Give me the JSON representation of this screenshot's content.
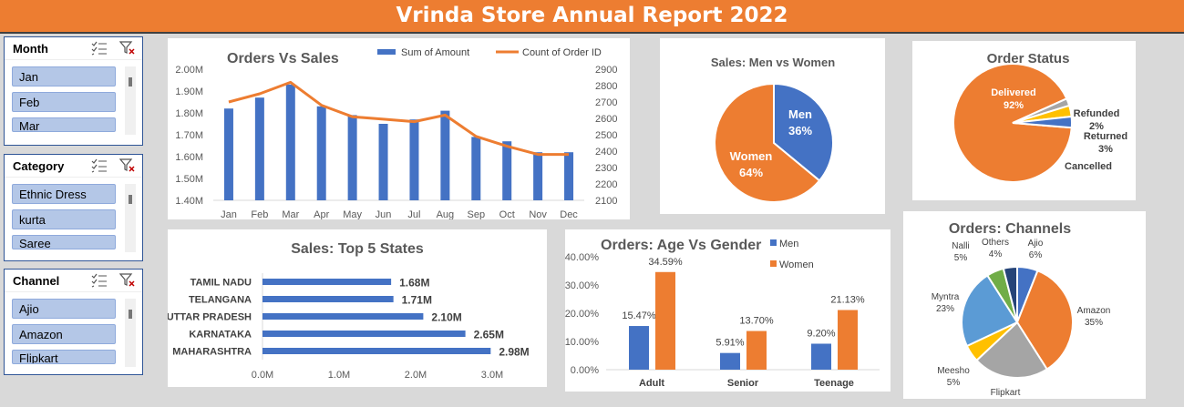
{
  "title": "Vrinda Store Annual Report 2022",
  "slicers": [
    {
      "title": "Month",
      "items": [
        "Jan",
        "Feb",
        "Mar"
      ]
    },
    {
      "title": "Category",
      "items": [
        "Ethnic Dress",
        "kurta",
        "Saree"
      ]
    },
    {
      "title": "Channel",
      "items": [
        "Ajio",
        "Amazon",
        "Flipkart"
      ]
    }
  ],
  "colors": {
    "blue": "#4472c4",
    "orange": "#ed7d31",
    "gray": "#a5a5a5",
    "yellow": "#ffc000",
    "lightblue": "#5b9bd5",
    "green": "#70ad47",
    "navy": "#264478"
  },
  "chart_data": [
    {
      "type": "bar",
      "title": "Orders Vs Sales",
      "categories": [
        "Jan",
        "Feb",
        "Mar",
        "Apr",
        "May",
        "Jun",
        "Jul",
        "Aug",
        "Sep",
        "Oct",
        "Nov",
        "Dec"
      ],
      "series": [
        {
          "name": "Sum of Amount",
          "type": "bar",
          "axis": "left",
          "values": [
            1.82,
            1.87,
            1.93,
            1.83,
            1.79,
            1.75,
            1.77,
            1.81,
            1.69,
            1.67,
            1.62,
            1.62
          ]
        },
        {
          "name": "Count of Order ID",
          "type": "line",
          "axis": "right",
          "values": [
            2700,
            2750,
            2820,
            2680,
            2610,
            2595,
            2580,
            2620,
            2490,
            2430,
            2380,
            2380
          ]
        }
      ],
      "ylim": [
        1.4,
        2.0
      ],
      "yticks": [
        "1.40M",
        "1.50M",
        "1.60M",
        "1.70M",
        "1.80M",
        "1.90M",
        "2.00M"
      ],
      "y2lim": [
        2100,
        2900
      ],
      "y2ticks": [
        "2100",
        "2200",
        "2300",
        "2400",
        "2500",
        "2600",
        "2700",
        "2800",
        "2900"
      ],
      "legend": "top"
    },
    {
      "type": "pie",
      "title": "Sales: Men vs Women",
      "labels": [
        "Men",
        "Women"
      ],
      "values": [
        36,
        64
      ],
      "value_labels": [
        "36%",
        "64%"
      ]
    },
    {
      "type": "pie",
      "title": "Order Status",
      "labels": [
        "Delivered",
        "Refunded",
        "Returned",
        "Cancelled"
      ],
      "values": [
        92,
        2,
        3,
        3
      ],
      "value_labels": [
        "92%",
        "2%",
        "3%",
        ""
      ]
    },
    {
      "type": "bar",
      "orientation": "horizontal",
      "title": "Sales: Top 5 States",
      "categories": [
        "TAMIL NADU",
        "TELANGANA",
        "UTTAR PRADESH",
        "KARNATAKA",
        "MAHARASHTRA"
      ],
      "values": [
        1.68,
        1.71,
        2.1,
        2.65,
        2.98
      ],
      "value_labels": [
        "1.68M",
        "1.71M",
        "2.10M",
        "2.65M",
        "2.98M"
      ],
      "xlim": [
        0,
        3.0
      ],
      "xticks": [
        "0.0M",
        "1.0M",
        "2.0M",
        "3.0M"
      ]
    },
    {
      "type": "bar",
      "title": "Orders: Age Vs Gender",
      "categories": [
        "Adult",
        "Senior",
        "Teenage"
      ],
      "series": [
        {
          "name": "Men",
          "values": [
            15.47,
            5.91,
            9.2
          ],
          "value_labels": [
            "15.47%",
            "5.91%",
            "9.20%"
          ]
        },
        {
          "name": "Women",
          "values": [
            34.59,
            13.7,
            21.13
          ],
          "value_labels": [
            "34.59%",
            "13.70%",
            "21.13%"
          ]
        }
      ],
      "ylim": [
        0,
        40
      ],
      "yticks": [
        "0.00%",
        "10.00%",
        "20.00%",
        "30.00%",
        "40.00%"
      ],
      "legend": "top-right"
    },
    {
      "type": "pie",
      "title": "Orders: Channels",
      "labels": [
        "Ajio",
        "Amazon",
        "Flipkart",
        "Meesho",
        "Myntra",
        "Nalli",
        "Others"
      ],
      "values": [
        6,
        35,
        22,
        5,
        23,
        5,
        4
      ],
      "value_labels": [
        "6%",
        "35%",
        "22%",
        "5%",
        "23%",
        "5%",
        "4%"
      ]
    }
  ]
}
